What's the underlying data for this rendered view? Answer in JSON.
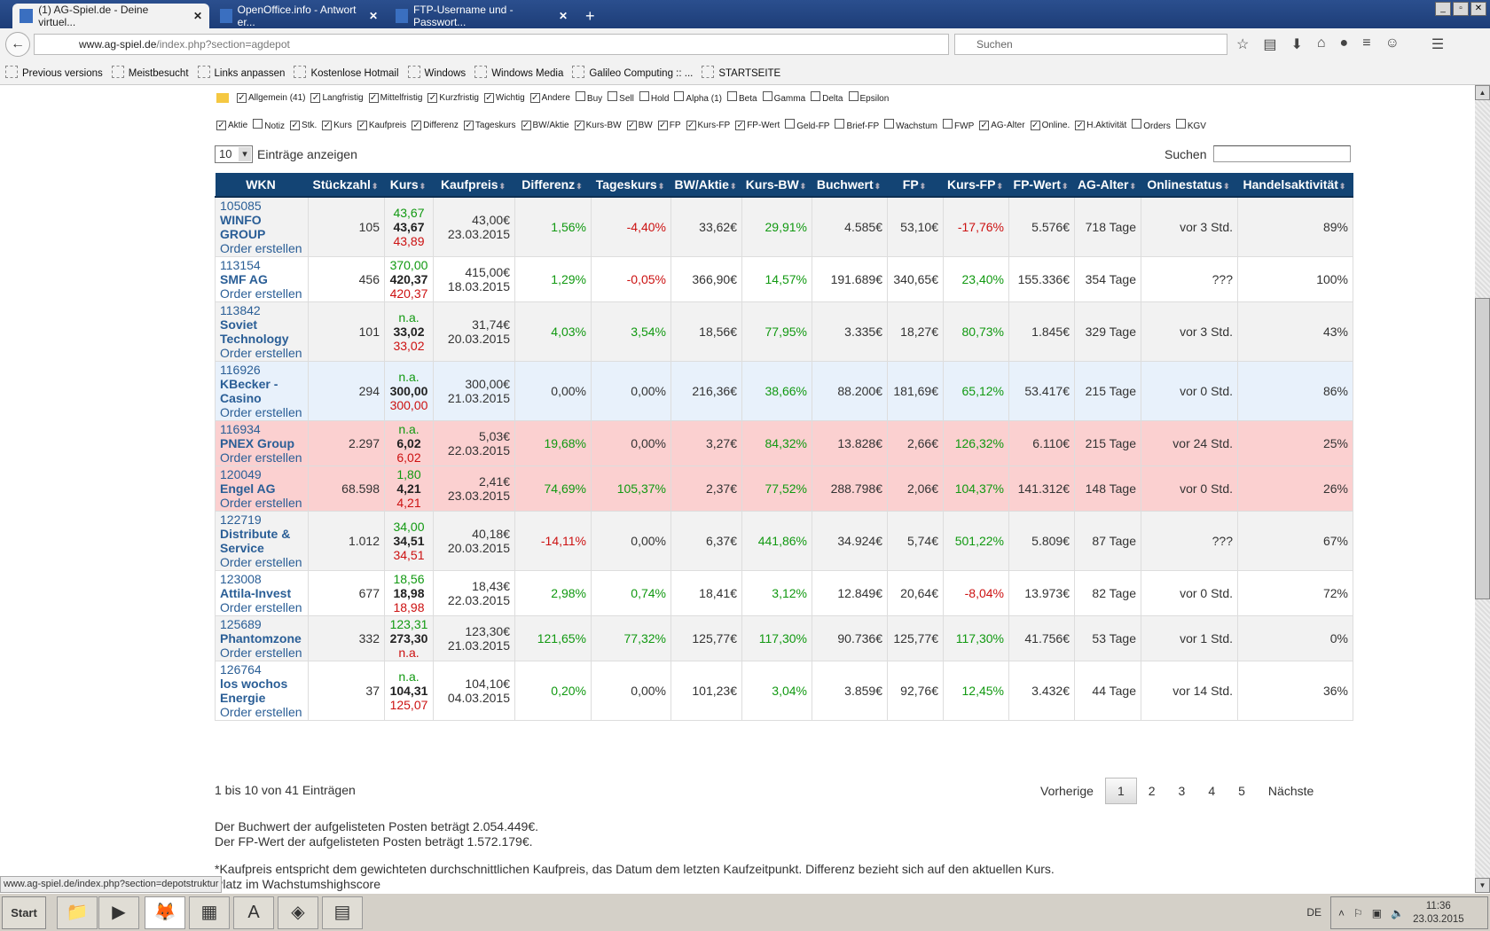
{
  "browser": {
    "tabs": [
      {
        "label": "(1) AG-Spiel.de - Deine virtuel...",
        "active": true
      },
      {
        "label": "OpenOffice.info - Antwort er...",
        "active": false
      },
      {
        "label": "FTP-Username und -Passwort...",
        "active": false
      }
    ],
    "url_domain": "www.ag-spiel.de",
    "url_path": "/index.php?section=agdepot",
    "search_placeholder": "Suchen",
    "bookmarks": [
      "Previous versions",
      "Meistbesucht",
      "Links anpassen",
      "Kostenlose Hotmail",
      "Windows",
      "Windows Media",
      "Galileo Computing :: ...",
      "STARTSEITE"
    ],
    "status_url": "www.ag-spiel.de/index.php?section=depotstruktur"
  },
  "filters": {
    "groups": [
      {
        "label": "Allgemein (41)",
        "checked": true
      },
      {
        "label": "Langfristig",
        "checked": true
      },
      {
        "label": "Mittelfristig",
        "checked": true
      },
      {
        "label": "Kurzfristig",
        "checked": true
      },
      {
        "label": "Wichtig",
        "checked": true
      },
      {
        "label": "Andere",
        "checked": true
      },
      {
        "label": "Buy",
        "checked": false
      },
      {
        "label": "Sell",
        "checked": false
      },
      {
        "label": "Hold",
        "checked": false
      },
      {
        "label": "Alpha (1)",
        "checked": false
      },
      {
        "label": "Beta",
        "checked": false
      },
      {
        "label": "Gamma",
        "checked": false
      },
      {
        "label": "Delta",
        "checked": false
      },
      {
        "label": "Epsilon",
        "checked": false
      }
    ],
    "columns": [
      {
        "label": "Aktie",
        "checked": true
      },
      {
        "label": "Notiz",
        "checked": false
      },
      {
        "label": "Stk.",
        "checked": true
      },
      {
        "label": "Kurs",
        "checked": true
      },
      {
        "label": "Kaufpreis",
        "checked": true
      },
      {
        "label": "Differenz",
        "checked": true
      },
      {
        "label": "Tageskurs",
        "checked": true
      },
      {
        "label": "BW/Aktie",
        "checked": true
      },
      {
        "label": "Kurs-BW",
        "checked": true
      },
      {
        "label": "BW",
        "checked": true
      },
      {
        "label": "FP",
        "checked": true
      },
      {
        "label": "Kurs-FP",
        "checked": true
      },
      {
        "label": "FP-Wert",
        "checked": true
      },
      {
        "label": "Geld-FP",
        "checked": false
      },
      {
        "label": "Brief-FP",
        "checked": false
      },
      {
        "label": "Wachstum",
        "checked": false
      },
      {
        "label": "FWP",
        "checked": false
      },
      {
        "label": "AG-Alter",
        "checked": true
      },
      {
        "label": "Online.",
        "checked": true
      },
      {
        "label": "H.Aktivität",
        "checked": true
      },
      {
        "label": "Orders",
        "checked": false
      },
      {
        "label": "KGV",
        "checked": false
      }
    ]
  },
  "controls": {
    "page_length": "10",
    "page_length_label": "Einträge anzeigen",
    "search_label": "Suchen"
  },
  "table": {
    "headers": [
      "WKN",
      "Stückzahl",
      "Kurs",
      "Kaufpreis",
      "Differenz",
      "Tageskurs",
      "BW/Aktie",
      "Kurs-BW",
      "Buchwert",
      "FP",
      "Kurs-FP",
      "FP-Wert",
      "AG-Alter",
      "Onlinestatus",
      "Handelsaktivität"
    ],
    "order_label": "Order erstellen",
    "rows": [
      {
        "bg": "gray",
        "wkn": "105085",
        "name": "WINFO GROUP",
        "stk": "105",
        "kurs": [
          "43,67",
          "43,67",
          "43,89"
        ],
        "kurs_c": [
          "pos",
          "neg"
        ],
        "kaufpreis": "43,00€",
        "datum": "23.03.2015",
        "diff": [
          "1,56%",
          "pos"
        ],
        "tag": [
          "-4,40%",
          "neg"
        ],
        "bwa": "33,62€",
        "kbw": [
          "29,91%",
          "pos"
        ],
        "bw": "4.585€",
        "fp": "53,10€",
        "kfp": [
          "-17,76%",
          "neg"
        ],
        "fpw": "5.576€",
        "alter": "718 Tage",
        "online": "vor 3 Std.",
        "akt": "89%"
      },
      {
        "bg": "white",
        "wkn": "113154",
        "name": "SMF AG",
        "stk": "456",
        "kurs": [
          "370,00",
          "420,37",
          "420,37"
        ],
        "kurs_c": [
          "pos",
          "neg"
        ],
        "kaufpreis": "415,00€",
        "datum": "18.03.2015",
        "diff": [
          "1,29%",
          "pos"
        ],
        "tag": [
          "-0,05%",
          "neg"
        ],
        "bwa": "366,90€",
        "kbw": [
          "14,57%",
          "pos"
        ],
        "bw": "191.689€",
        "fp": "340,65€",
        "kfp": [
          "23,40%",
          "pos"
        ],
        "fpw": "155.336€",
        "alter": "354 Tage",
        "online": "???",
        "akt": "100%"
      },
      {
        "bg": "gray",
        "wkn": "113842",
        "name": "Soviet Technology",
        "stk": "101",
        "kurs": [
          "n.a.",
          "33,02",
          "33,02"
        ],
        "kurs_c": [
          "pos",
          "neg"
        ],
        "kaufpreis": "31,74€",
        "datum": "20.03.2015",
        "diff": [
          "4,03%",
          "pos"
        ],
        "tag": [
          "3,54%",
          "pos"
        ],
        "bwa": "18,56€",
        "kbw": [
          "77,95%",
          "pos"
        ],
        "bw": "3.335€",
        "fp": "18,27€",
        "kfp": [
          "80,73%",
          "pos"
        ],
        "fpw": "1.845€",
        "alter": "329 Tage",
        "online": "vor 3 Std.",
        "akt": "43%"
      },
      {
        "bg": "blue",
        "wkn": "116926",
        "name": "KBecker - Casino",
        "stk": "294",
        "kurs": [
          "n.a.",
          "300,00",
          "300,00"
        ],
        "kurs_c": [
          "pos",
          "neg"
        ],
        "kaufpreis": "300,00€",
        "datum": "21.03.2015",
        "diff": [
          "0,00%",
          ""
        ],
        "tag": [
          "0,00%",
          ""
        ],
        "bwa": "216,36€",
        "kbw": [
          "38,66%",
          "pos"
        ],
        "bw": "88.200€",
        "fp": "181,69€",
        "kfp": [
          "65,12%",
          "pos"
        ],
        "fpw": "53.417€",
        "alter": "215 Tage",
        "online": "vor 0 Std.",
        "akt": "86%"
      },
      {
        "bg": "pink",
        "wkn": "116934",
        "name": "PNEX Group",
        "stk": "2.297",
        "kurs": [
          "n.a.",
          "6,02",
          "6,02"
        ],
        "kurs_c": [
          "pos",
          "neg"
        ],
        "kaufpreis": "5,03€",
        "datum": "22.03.2015",
        "diff": [
          "19,68%",
          "pos"
        ],
        "tag": [
          "0,00%",
          ""
        ],
        "bwa": "3,27€",
        "kbw": [
          "84,32%",
          "pos"
        ],
        "bw": "13.828€",
        "fp": "2,66€",
        "kfp": [
          "126,32%",
          "pos"
        ],
        "fpw": "6.110€",
        "alter": "215 Tage",
        "online": "vor 24 Std.",
        "akt": "25%"
      },
      {
        "bg": "pink",
        "wkn": "120049",
        "name": "Engel AG",
        "stk": "68.598",
        "kurs": [
          "1,80",
          "4,21",
          "4,21"
        ],
        "kurs_c": [
          "pos",
          "neg"
        ],
        "kaufpreis": "2,41€",
        "datum": "23.03.2015",
        "diff": [
          "74,69%",
          "pos"
        ],
        "tag": [
          "105,37%",
          "pos"
        ],
        "bwa": "2,37€",
        "kbw": [
          "77,52%",
          "pos"
        ],
        "bw": "288.798€",
        "fp": "2,06€",
        "kfp": [
          "104,37%",
          "pos"
        ],
        "fpw": "141.312€",
        "alter": "148 Tage",
        "online": "vor 0 Std.",
        "akt": "26%"
      },
      {
        "bg": "gray",
        "wkn": "122719",
        "name": "Distribute & Service",
        "stk": "1.012",
        "kurs": [
          "34,00",
          "34,51",
          "34,51"
        ],
        "kurs_c": [
          "pos",
          "neg"
        ],
        "kaufpreis": "40,18€",
        "datum": "20.03.2015",
        "diff": [
          "-14,11%",
          "neg"
        ],
        "tag": [
          "0,00%",
          ""
        ],
        "bwa": "6,37€",
        "kbw": [
          "441,86%",
          "pos"
        ],
        "bw": "34.924€",
        "fp": "5,74€",
        "kfp": [
          "501,22%",
          "pos"
        ],
        "fpw": "5.809€",
        "alter": "87 Tage",
        "online": "???",
        "akt": "67%"
      },
      {
        "bg": "white",
        "wkn": "123008",
        "name": "Attila-Invest",
        "stk": "677",
        "kurs": [
          "18,56",
          "18,98",
          "18,98"
        ],
        "kurs_c": [
          "pos",
          "neg"
        ],
        "kaufpreis": "18,43€",
        "datum": "22.03.2015",
        "diff": [
          "2,98%",
          "pos"
        ],
        "tag": [
          "0,74%",
          "pos"
        ],
        "bwa": "18,41€",
        "kbw": [
          "3,12%",
          "pos"
        ],
        "bw": "12.849€",
        "fp": "20,64€",
        "kfp": [
          "-8,04%",
          "neg"
        ],
        "fpw": "13.973€",
        "alter": "82 Tage",
        "online": "vor 0 Std.",
        "akt": "72%"
      },
      {
        "bg": "gray",
        "wkn": "125689",
        "name": "Phantomzone",
        "stk": "332",
        "kurs": [
          "123,31",
          "273,30",
          "n.a."
        ],
        "kurs_c": [
          "pos",
          "neg"
        ],
        "kaufpreis": "123,30€",
        "datum": "21.03.2015",
        "diff": [
          "121,65%",
          "pos"
        ],
        "tag": [
          "77,32%",
          "pos"
        ],
        "bwa": "125,77€",
        "kbw": [
          "117,30%",
          "pos"
        ],
        "bw": "90.736€",
        "fp": "125,77€",
        "kfp": [
          "117,30%",
          "pos"
        ],
        "fpw": "41.756€",
        "alter": "53 Tage",
        "online": "vor 1 Std.",
        "akt": "0%"
      },
      {
        "bg": "white",
        "wkn": "126764",
        "name": "los wochos Energie",
        "stk": "37",
        "kurs": [
          "n.a.",
          "104,31",
          "125,07"
        ],
        "kurs_c": [
          "pos",
          "neg"
        ],
        "kaufpreis": "104,10€",
        "datum": "04.03.2015",
        "diff": [
          "0,20%",
          "pos"
        ],
        "tag": [
          "0,00%",
          ""
        ],
        "bwa": "101,23€",
        "kbw": [
          "3,04%",
          "pos"
        ],
        "bw": "3.859€",
        "fp": "92,76€",
        "kfp": [
          "12,45%",
          "pos"
        ],
        "fpw": "3.432€",
        "alter": "44 Tage",
        "online": "vor 14 Std.",
        "akt": "36%"
      }
    ]
  },
  "pagination": {
    "info": "1 bis 10 von 41 Einträgen",
    "prev": "Vorherige",
    "pages": [
      "1",
      "2",
      "3",
      "4",
      "5"
    ],
    "current": "1",
    "next": "Nächste"
  },
  "summary": {
    "buchwert": "Der Buchwert der aufgelisteten Posten beträgt 2.054.449€.",
    "fpwert": "Der FP-Wert der aufgelisteten Posten beträgt 1.572.179€."
  },
  "notes": [
    "*Kaufpreis entspricht dem gewichteten durchschnittlichen Kaufpreis, das Datum dem letzten Kaufzeitpunkt. Differenz bezieht sich auf den aktuellen Kurs.",
    "Platz im Wachstumshighscore"
  ],
  "taskbar": {
    "start": "Start",
    "lang": "DE",
    "time": "11:36",
    "date": "23.03.2015"
  },
  "colors": {
    "header": "#134474",
    "positive": "#119911",
    "negative": "#cc1111",
    "row_highlight_pink": "#fbd0d0",
    "row_highlight_blue": "#e8f1fb"
  }
}
